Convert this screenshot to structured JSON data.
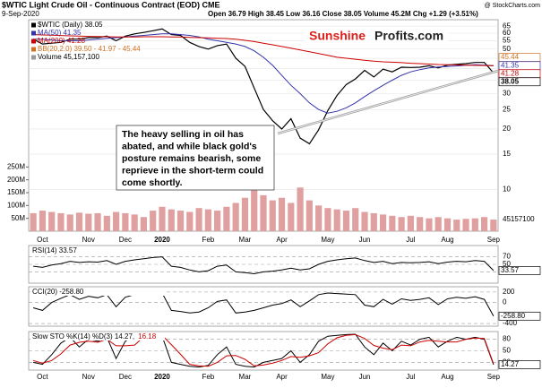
{
  "header": {
    "title": "$WTIC Light Crude Oil - Continuous Contract (EOD) CME",
    "date": "9-Sep-2020",
    "quote": "Open 36.79  High 38.45  Low 36.16  Close 38.05  Volume 45.2M  Chg +1.29 (+3.51%)",
    "source": "@ StockCharts.com"
  },
  "logo": {
    "part1": "Sunshine",
    "part2": "Profits.com"
  },
  "annotation": {
    "lines": [
      "The heavy selling in oil has",
      "abated, and while black gold's",
      "posture remains bearish, some",
      "reprieve in the short-term could",
      "come shortly."
    ]
  },
  "chart_data": [
    {
      "type": "line",
      "log_scale": true,
      "grid": true,
      "categories": [
        null,
        "Oct",
        null,
        null,
        null,
        null,
        "Nov",
        null,
        null,
        null,
        "Dec",
        null,
        null,
        null,
        "2020",
        null,
        null,
        null,
        null,
        "Feb",
        null,
        null,
        null,
        "Mar",
        null,
        null,
        null,
        "Apr",
        null,
        null,
        null,
        null,
        "May",
        null,
        null,
        null,
        "Jun",
        null,
        null,
        null,
        null,
        "Jul",
        null,
        null,
        null,
        "Aug",
        null,
        null,
        null,
        null,
        "Sep"
      ],
      "ylim": [
        6.2,
        70
      ],
      "yticks": [
        65,
        60,
        55,
        50,
        45,
        40,
        35,
        30,
        25,
        20,
        15,
        10
      ],
      "series": [
        {
          "name": "$WTIC (Daily) 38.05",
          "color": "#000000",
          "values": [
            56,
            53,
            53.5,
            54,
            56,
            56,
            57,
            57,
            58,
            55,
            58,
            59.5,
            60.5,
            61.7,
            63,
            59,
            58.5,
            54,
            51.5,
            50,
            52,
            53,
            45,
            41,
            32,
            25,
            22,
            20,
            22.5,
            18,
            16.9,
            19.8,
            24.7,
            29.4,
            33.3,
            35.5,
            39.2,
            36.3,
            39.7,
            38.5,
            40.6,
            40.5,
            40.6,
            41.3,
            40.3,
            41.6,
            42,
            42.3,
            42.9,
            42.9,
            38.05
          ]
        },
        {
          "name": "MA(50) 41.35",
          "color": "#3333aa",
          "values": [
            56,
            56,
            55.5,
            55,
            55,
            55,
            55.5,
            56,
            56.5,
            57,
            57.5,
            58,
            58.5,
            59,
            59.5,
            59.5,
            59,
            58.5,
            57.5,
            56,
            55,
            54,
            53,
            51.5,
            49,
            45.5,
            41.5,
            37,
            33,
            30,
            27,
            25,
            24,
            24.5,
            25.5,
            27,
            29,
            31,
            33,
            35,
            37,
            38.5,
            39.5,
            40.3,
            40.7,
            40.9,
            41.2,
            41.5,
            41.8,
            41.6,
            41.35
          ]
        },
        {
          "name": "MA(200) 41.28",
          "color": "#cc0000",
          "values": [
            59,
            58.8,
            58.6,
            58.4,
            58.2,
            58,
            57.8,
            57.7,
            57.6,
            57.5,
            57.5,
            57.5,
            57.6,
            57.6,
            57.6,
            57.5,
            57.4,
            57.2,
            57,
            56.8,
            56.6,
            56.4,
            56,
            55.3,
            54.5,
            53.5,
            52.5,
            51.5,
            50.5,
            49.5,
            48.5,
            47.5,
            46.5,
            45.5,
            45,
            44.5,
            44,
            43.5,
            43.2,
            43,
            42.8,
            42.5,
            42.3,
            42.1,
            41.9,
            41.8,
            41.7,
            41.6,
            41.5,
            41.4,
            41.28
          ]
        }
      ],
      "bands": {
        "name": "BB(20,2.0) 39.50 - 41.97 - 45.44",
        "color": "#d07020"
      },
      "value_tags": [
        {
          "value": 45.44,
          "color": "#d07020"
        },
        {
          "value": 41.35,
          "color": "#3333aa"
        },
        {
          "value": 41.28,
          "color": "#cc0000"
        },
        {
          "value": 38.05,
          "color": "#000000"
        }
      ],
      "volume": {
        "name": "Volume 45,157,100",
        "color": "#e0a0a0",
        "ylim": [
          0,
          300
        ],
        "yticks": [
          {
            "value": 250,
            "label": "250M"
          },
          {
            "value": 200,
            "label": "200M"
          },
          {
            "value": 150,
            "label": "150M"
          },
          {
            "value": 100,
            "label": "100M"
          },
          {
            "value": 50,
            "label": "50M"
          }
        ],
        "values": [
          70,
          80,
          75,
          70,
          65,
          72,
          68,
          70,
          60,
          75,
          70,
          65,
          55,
          80,
          95,
          85,
          80,
          75,
          90,
          85,
          80,
          95,
          110,
          130,
          160,
          140,
          120,
          130,
          110,
          170,
          120,
          100,
          90,
          85,
          80,
          90,
          75,
          70,
          65,
          60,
          55,
          60,
          55,
          50,
          55,
          50,
          45,
          48,
          50,
          55,
          45.16
        ],
        "value_tag": {
          "value": 45.1571,
          "label": "45157100"
        }
      }
    },
    {
      "type": "line",
      "title": "RSI(14) 33.57",
      "ylim": [
        0,
        100
      ],
      "yticks": [
        70,
        50,
        30
      ],
      "series": [
        {
          "color": "#000000",
          "values": [
            45,
            42,
            48,
            52,
            58,
            55,
            57,
            56,
            60,
            50,
            58,
            62,
            65,
            68,
            70,
            45,
            42,
            35,
            30,
            33,
            45,
            48,
            30,
            28,
            25,
            30,
            32,
            35,
            40,
            35,
            38,
            50,
            58,
            62,
            65,
            67,
            60,
            55,
            58,
            52,
            55,
            54,
            55,
            57,
            52,
            56,
            58,
            57,
            60,
            58,
            33.57
          ]
        }
      ],
      "value_tags": [
        {
          "value": 33.57,
          "color": "#000000"
        }
      ]
    },
    {
      "type": "line",
      "title": "CCI(20) -258.80",
      "ylim": [
        -450,
        300
      ],
      "yticks": [
        200,
        0,
        -400
      ],
      "series": [
        {
          "color": "#000000",
          "values": [
            -100,
            -150,
            0,
            80,
            150,
            60,
            120,
            90,
            150,
            -80,
            100,
            150,
            180,
            160,
            180,
            -150,
            -170,
            -200,
            -180,
            -100,
            20,
            50,
            -200,
            -180,
            -150,
            -100,
            -50,
            -20,
            50,
            -80,
            30,
            150,
            180,
            170,
            160,
            150,
            -50,
            -80,
            60,
            -30,
            70,
            40,
            60,
            90,
            -40,
            70,
            100,
            80,
            110,
            60,
            -258.8
          ]
        }
      ],
      "value_tags": [
        {
          "value": -258.8,
          "label": "-258.80",
          "color": "#000000"
        }
      ]
    },
    {
      "type": "line",
      "title": "Slow STO %K(14) %D(3) 14.27,",
      "title_extra": {
        "text": "16.18",
        "color": "#cc0000"
      },
      "ylim": [
        0,
        100
      ],
      "yticks": [
        80,
        50,
        20
      ],
      "categories": [
        null,
        "Oct",
        null,
        null,
        null,
        null,
        "Nov",
        null,
        null,
        null,
        "Dec",
        null,
        null,
        null,
        "2020",
        null,
        null,
        null,
        null,
        "Feb",
        null,
        null,
        null,
        "Mar",
        null,
        null,
        null,
        "Apr",
        null,
        null,
        null,
        null,
        "May",
        null,
        null,
        null,
        "Jun",
        null,
        null,
        null,
        null,
        "Jul",
        null,
        null,
        null,
        "Aug",
        null,
        null,
        null,
        null,
        "Sep"
      ],
      "series": [
        {
          "color": "#000000",
          "values": [
            20,
            15,
            40,
            70,
            85,
            60,
            80,
            75,
            85,
            30,
            75,
            90,
            92,
            90,
            88,
            20,
            15,
            10,
            8,
            12,
            40,
            60,
            15,
            10,
            8,
            20,
            25,
            30,
            50,
            20,
            40,
            75,
            88,
            90,
            92,
            93,
            60,
            40,
            70,
            50,
            75,
            65,
            80,
            85,
            60,
            75,
            85,
            80,
            85,
            80,
            14.27
          ]
        },
        {
          "color": "#cc0000",
          "values": [
            25,
            18,
            25,
            42,
            65,
            72,
            75,
            72,
            80,
            63,
            63,
            65,
            86,
            91,
            90,
            66,
            41,
            15,
            11,
            10,
            20,
            37,
            38,
            28,
            11,
            13,
            18,
            25,
            35,
            33,
            37,
            45,
            68,
            84,
            90,
            92,
            82,
            64,
            57,
            53,
            65,
            63,
            73,
            77,
            75,
            73,
            73,
            80,
            83,
            82,
            16.18
          ]
        }
      ],
      "value_tags": [
        {
          "value": 14.27,
          "color": "#000000"
        }
      ]
    }
  ]
}
